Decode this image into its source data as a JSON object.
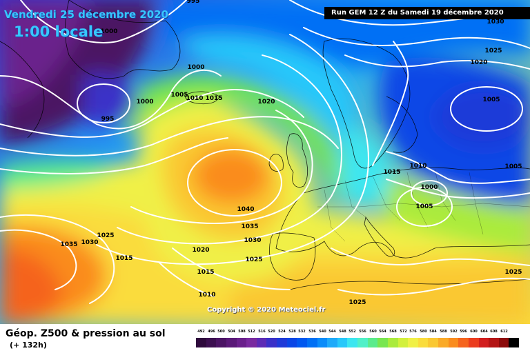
{
  "header": {
    "date_line": "Vendredi 25 décembre 2020",
    "time_line": "1:00 locale",
    "run_banner": "Run GEM 12 Z du Samedi 19 décembre 2020"
  },
  "map": {
    "copyright": "Copyright © 2020 Meteociel.fr",
    "pressure_unit": "hPa",
    "isobar_labels": [
      {
        "value": "995"
      },
      {
        "value": "1000"
      },
      {
        "value": "1000"
      },
      {
        "value": "1000"
      },
      {
        "value": "995"
      },
      {
        "value": "1005"
      },
      {
        "value": "1010"
      },
      {
        "value": "1015"
      },
      {
        "value": "1020"
      },
      {
        "value": "1030"
      },
      {
        "value": "1025"
      },
      {
        "value": "1020"
      },
      {
        "value": "1005"
      },
      {
        "value": "1005"
      },
      {
        "value": "1015"
      },
      {
        "value": "1010"
      },
      {
        "value": "1000"
      },
      {
        "value": "1005"
      },
      {
        "value": "1040"
      },
      {
        "value": "1035"
      },
      {
        "value": "1030"
      },
      {
        "value": "1025"
      },
      {
        "value": "1035"
      },
      {
        "value": "1030"
      },
      {
        "value": "1025"
      },
      {
        "value": "1015"
      },
      {
        "value": "1020"
      },
      {
        "value": "1015"
      },
      {
        "value": "1010"
      },
      {
        "value": "1025"
      },
      {
        "value": "1025"
      }
    ],
    "pressure_systems": [
      {
        "type": "high",
        "center_hpa": 1040,
        "label": "1040",
        "region": "west of Ireland"
      },
      {
        "type": "low",
        "center_hpa": 1005,
        "label": "1005",
        "region": "western Russia"
      },
      {
        "type": "low",
        "center_hpa": 995,
        "label": "995",
        "region": "south of Greenland"
      },
      {
        "type": "low",
        "center_hpa": 1000,
        "label": "1000",
        "region": "Balkans"
      }
    ],
    "colors": {
      "z500_low": "#5a0a6e",
      "z500_mid": "#1e78ff",
      "z500_high": "#ffa500",
      "isobar": "#ffffff",
      "coastline": "#000000"
    }
  },
  "legend": {
    "product_title": "Géop. Z500 & pression au sol",
    "lead_time": "(+ 132h)",
    "scale_unit": "dam",
    "scale": [
      {
        "label": "492",
        "color": "#2e0a3c"
      },
      {
        "label": "496",
        "color": "#3c0f50"
      },
      {
        "label": "500",
        "color": "#4b1464"
      },
      {
        "label": "504",
        "color": "#5a1978"
      },
      {
        "label": "508",
        "color": "#6a208c"
      },
      {
        "label": "512",
        "color": "#7a2aa0"
      },
      {
        "label": "516",
        "color": "#5d2bb5"
      },
      {
        "label": "520",
        "color": "#3a30c8"
      },
      {
        "label": "524",
        "color": "#1f3ad8"
      },
      {
        "label": "528",
        "color": "#0a46e6"
      },
      {
        "label": "532",
        "color": "#0058f0"
      },
      {
        "label": "536",
        "color": "#0070f5"
      },
      {
        "label": "540",
        "color": "#0a8cfa"
      },
      {
        "label": "544",
        "color": "#1eaafa"
      },
      {
        "label": "548",
        "color": "#28c8fa"
      },
      {
        "label": "552",
        "color": "#3ce6f0"
      },
      {
        "label": "556",
        "color": "#50f0c8"
      },
      {
        "label": "560",
        "color": "#5aeb8c"
      },
      {
        "label": "564",
        "color": "#78e650"
      },
      {
        "label": "568",
        "color": "#aaeb3c"
      },
      {
        "label": "572",
        "color": "#d2f03c"
      },
      {
        "label": "576",
        "color": "#f0f046"
      },
      {
        "label": "580",
        "color": "#fadc3c"
      },
      {
        "label": "584",
        "color": "#fac832"
      },
      {
        "label": "588",
        "color": "#faaa28"
      },
      {
        "label": "592",
        "color": "#fa8c1e"
      },
      {
        "label": "596",
        "color": "#f5641e"
      },
      {
        "label": "600",
        "color": "#eb3c1e"
      },
      {
        "label": "604",
        "color": "#d21e1e"
      },
      {
        "label": "608",
        "color": "#b41414"
      },
      {
        "label": "612",
        "color": "#8c0a0a"
      },
      {
        "label": "",
        "color": "#000000"
      }
    ]
  }
}
